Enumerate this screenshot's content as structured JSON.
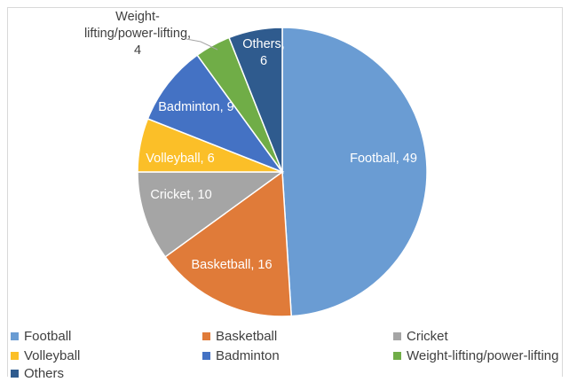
{
  "chart_data": {
    "type": "pie",
    "categories": [
      "Football",
      "Basketball",
      "Cricket",
      "Volleyball",
      "Badminton",
      "Weight-lifting/power-lifting",
      "Others"
    ],
    "values": [
      49,
      16,
      10,
      6,
      9,
      4,
      6
    ],
    "colors": [
      "#6a9cd3",
      "#e07b39",
      "#a5a5a5",
      "#fbbf28",
      "#4472c4",
      "#70ad47",
      "#2f5b8e"
    ],
    "data_labels": [
      {
        "lines": [
          "Football, 49"
        ],
        "color": "#ffffff"
      },
      {
        "lines": [
          "Basketball, 16"
        ],
        "color": "#ffffff"
      },
      {
        "lines": [
          "Cricket, 10"
        ],
        "color": "#ffffff"
      },
      {
        "lines": [
          "Volleyball, 6"
        ],
        "color": "#ffffff"
      },
      {
        "lines": [
          "Badminton, 9"
        ],
        "color": "#ffffff"
      },
      {
        "lines": [
          "Weight-",
          "lifting/power-lifting,",
          "4"
        ],
        "color": "#404040"
      },
      {
        "lines": [
          "Others,",
          "6"
        ],
        "color": "#ffffff"
      }
    ],
    "start_direction": "12 o'clock",
    "order": "clockwise",
    "legend_position": "bottom"
  }
}
